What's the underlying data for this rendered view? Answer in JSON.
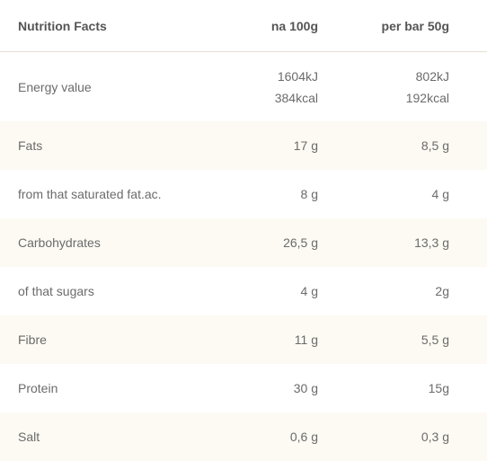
{
  "header": {
    "title": "Nutrition Facts",
    "col_a": "na 100g",
    "col_b": "per bar 50g"
  },
  "rows": [
    {
      "label": "Energy value",
      "a1": "1604kJ",
      "a2": "384kcal",
      "b1": "802kJ",
      "b2": "192kcal"
    },
    {
      "label": "Fats",
      "a": "17 g",
      "b": "8,5 g"
    },
    {
      "label": "from that saturated fat.ac.",
      "a": "8 g",
      "b": "4 g"
    },
    {
      "label": "Carbohydrates",
      "a": "26,5 g",
      "b": "13,3 g"
    },
    {
      "label": "of that sugars",
      "a": "4 g",
      "b": "2g"
    },
    {
      "label": "Fibre",
      "a": "11 g",
      "b": "5,5 g"
    },
    {
      "label": "Protein",
      "a": "30 g",
      "b": "15g"
    },
    {
      "label": "Salt",
      "a": "0,6 g",
      "b": "0,3 g"
    }
  ],
  "colors": {
    "row_alt_bg": "#fdfaf3",
    "divider": "#e5dfd2",
    "text": "#6b6b6b"
  }
}
